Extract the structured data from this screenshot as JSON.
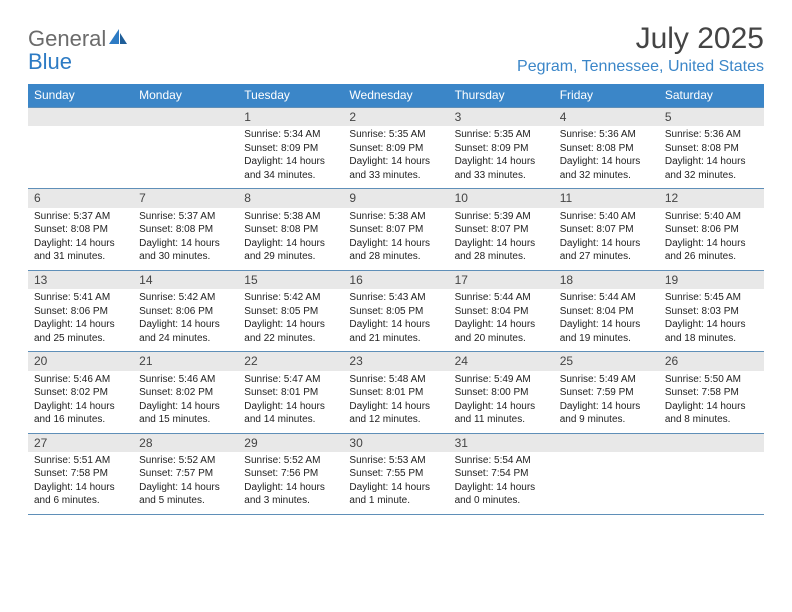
{
  "brand": {
    "word1": "General",
    "word2": "Blue"
  },
  "title": "July 2025",
  "location": "Pegram, Tennessee, United States",
  "colors": {
    "header_bg": "#3b86c8",
    "header_text": "#ffffff",
    "band_bg": "#e8e8e8",
    "rule": "#5f8fb8",
    "logo_gray": "#6b6b6b",
    "logo_blue": "#2d7bc4",
    "location_color": "#3b86c8",
    "title_color": "#444444",
    "body_text": "#222222"
  },
  "days_of_week": [
    "Sunday",
    "Monday",
    "Tuesday",
    "Wednesday",
    "Thursday",
    "Friday",
    "Saturday"
  ],
  "weeks": [
    [
      {
        "n": "",
        "sunrise": "",
        "sunset": "",
        "daylight": ""
      },
      {
        "n": "",
        "sunrise": "",
        "sunset": "",
        "daylight": ""
      },
      {
        "n": "1",
        "sunrise": "Sunrise: 5:34 AM",
        "sunset": "Sunset: 8:09 PM",
        "daylight": "Daylight: 14 hours and 34 minutes."
      },
      {
        "n": "2",
        "sunrise": "Sunrise: 5:35 AM",
        "sunset": "Sunset: 8:09 PM",
        "daylight": "Daylight: 14 hours and 33 minutes."
      },
      {
        "n": "3",
        "sunrise": "Sunrise: 5:35 AM",
        "sunset": "Sunset: 8:09 PM",
        "daylight": "Daylight: 14 hours and 33 minutes."
      },
      {
        "n": "4",
        "sunrise": "Sunrise: 5:36 AM",
        "sunset": "Sunset: 8:08 PM",
        "daylight": "Daylight: 14 hours and 32 minutes."
      },
      {
        "n": "5",
        "sunrise": "Sunrise: 5:36 AM",
        "sunset": "Sunset: 8:08 PM",
        "daylight": "Daylight: 14 hours and 32 minutes."
      }
    ],
    [
      {
        "n": "6",
        "sunrise": "Sunrise: 5:37 AM",
        "sunset": "Sunset: 8:08 PM",
        "daylight": "Daylight: 14 hours and 31 minutes."
      },
      {
        "n": "7",
        "sunrise": "Sunrise: 5:37 AM",
        "sunset": "Sunset: 8:08 PM",
        "daylight": "Daylight: 14 hours and 30 minutes."
      },
      {
        "n": "8",
        "sunrise": "Sunrise: 5:38 AM",
        "sunset": "Sunset: 8:08 PM",
        "daylight": "Daylight: 14 hours and 29 minutes."
      },
      {
        "n": "9",
        "sunrise": "Sunrise: 5:38 AM",
        "sunset": "Sunset: 8:07 PM",
        "daylight": "Daylight: 14 hours and 28 minutes."
      },
      {
        "n": "10",
        "sunrise": "Sunrise: 5:39 AM",
        "sunset": "Sunset: 8:07 PM",
        "daylight": "Daylight: 14 hours and 28 minutes."
      },
      {
        "n": "11",
        "sunrise": "Sunrise: 5:40 AM",
        "sunset": "Sunset: 8:07 PM",
        "daylight": "Daylight: 14 hours and 27 minutes."
      },
      {
        "n": "12",
        "sunrise": "Sunrise: 5:40 AM",
        "sunset": "Sunset: 8:06 PM",
        "daylight": "Daylight: 14 hours and 26 minutes."
      }
    ],
    [
      {
        "n": "13",
        "sunrise": "Sunrise: 5:41 AM",
        "sunset": "Sunset: 8:06 PM",
        "daylight": "Daylight: 14 hours and 25 minutes."
      },
      {
        "n": "14",
        "sunrise": "Sunrise: 5:42 AM",
        "sunset": "Sunset: 8:06 PM",
        "daylight": "Daylight: 14 hours and 24 minutes."
      },
      {
        "n": "15",
        "sunrise": "Sunrise: 5:42 AM",
        "sunset": "Sunset: 8:05 PM",
        "daylight": "Daylight: 14 hours and 22 minutes."
      },
      {
        "n": "16",
        "sunrise": "Sunrise: 5:43 AM",
        "sunset": "Sunset: 8:05 PM",
        "daylight": "Daylight: 14 hours and 21 minutes."
      },
      {
        "n": "17",
        "sunrise": "Sunrise: 5:44 AM",
        "sunset": "Sunset: 8:04 PM",
        "daylight": "Daylight: 14 hours and 20 minutes."
      },
      {
        "n": "18",
        "sunrise": "Sunrise: 5:44 AM",
        "sunset": "Sunset: 8:04 PM",
        "daylight": "Daylight: 14 hours and 19 minutes."
      },
      {
        "n": "19",
        "sunrise": "Sunrise: 5:45 AM",
        "sunset": "Sunset: 8:03 PM",
        "daylight": "Daylight: 14 hours and 18 minutes."
      }
    ],
    [
      {
        "n": "20",
        "sunrise": "Sunrise: 5:46 AM",
        "sunset": "Sunset: 8:02 PM",
        "daylight": "Daylight: 14 hours and 16 minutes."
      },
      {
        "n": "21",
        "sunrise": "Sunrise: 5:46 AM",
        "sunset": "Sunset: 8:02 PM",
        "daylight": "Daylight: 14 hours and 15 minutes."
      },
      {
        "n": "22",
        "sunrise": "Sunrise: 5:47 AM",
        "sunset": "Sunset: 8:01 PM",
        "daylight": "Daylight: 14 hours and 14 minutes."
      },
      {
        "n": "23",
        "sunrise": "Sunrise: 5:48 AM",
        "sunset": "Sunset: 8:01 PM",
        "daylight": "Daylight: 14 hours and 12 minutes."
      },
      {
        "n": "24",
        "sunrise": "Sunrise: 5:49 AM",
        "sunset": "Sunset: 8:00 PM",
        "daylight": "Daylight: 14 hours and 11 minutes."
      },
      {
        "n": "25",
        "sunrise": "Sunrise: 5:49 AM",
        "sunset": "Sunset: 7:59 PM",
        "daylight": "Daylight: 14 hours and 9 minutes."
      },
      {
        "n": "26",
        "sunrise": "Sunrise: 5:50 AM",
        "sunset": "Sunset: 7:58 PM",
        "daylight": "Daylight: 14 hours and 8 minutes."
      }
    ],
    [
      {
        "n": "27",
        "sunrise": "Sunrise: 5:51 AM",
        "sunset": "Sunset: 7:58 PM",
        "daylight": "Daylight: 14 hours and 6 minutes."
      },
      {
        "n": "28",
        "sunrise": "Sunrise: 5:52 AM",
        "sunset": "Sunset: 7:57 PM",
        "daylight": "Daylight: 14 hours and 5 minutes."
      },
      {
        "n": "29",
        "sunrise": "Sunrise: 5:52 AM",
        "sunset": "Sunset: 7:56 PM",
        "daylight": "Daylight: 14 hours and 3 minutes."
      },
      {
        "n": "30",
        "sunrise": "Sunrise: 5:53 AM",
        "sunset": "Sunset: 7:55 PM",
        "daylight": "Daylight: 14 hours and 1 minute."
      },
      {
        "n": "31",
        "sunrise": "Sunrise: 5:54 AM",
        "sunset": "Sunset: 7:54 PM",
        "daylight": "Daylight: 14 hours and 0 minutes."
      },
      {
        "n": "",
        "sunrise": "",
        "sunset": "",
        "daylight": ""
      },
      {
        "n": "",
        "sunrise": "",
        "sunset": "",
        "daylight": ""
      }
    ]
  ]
}
